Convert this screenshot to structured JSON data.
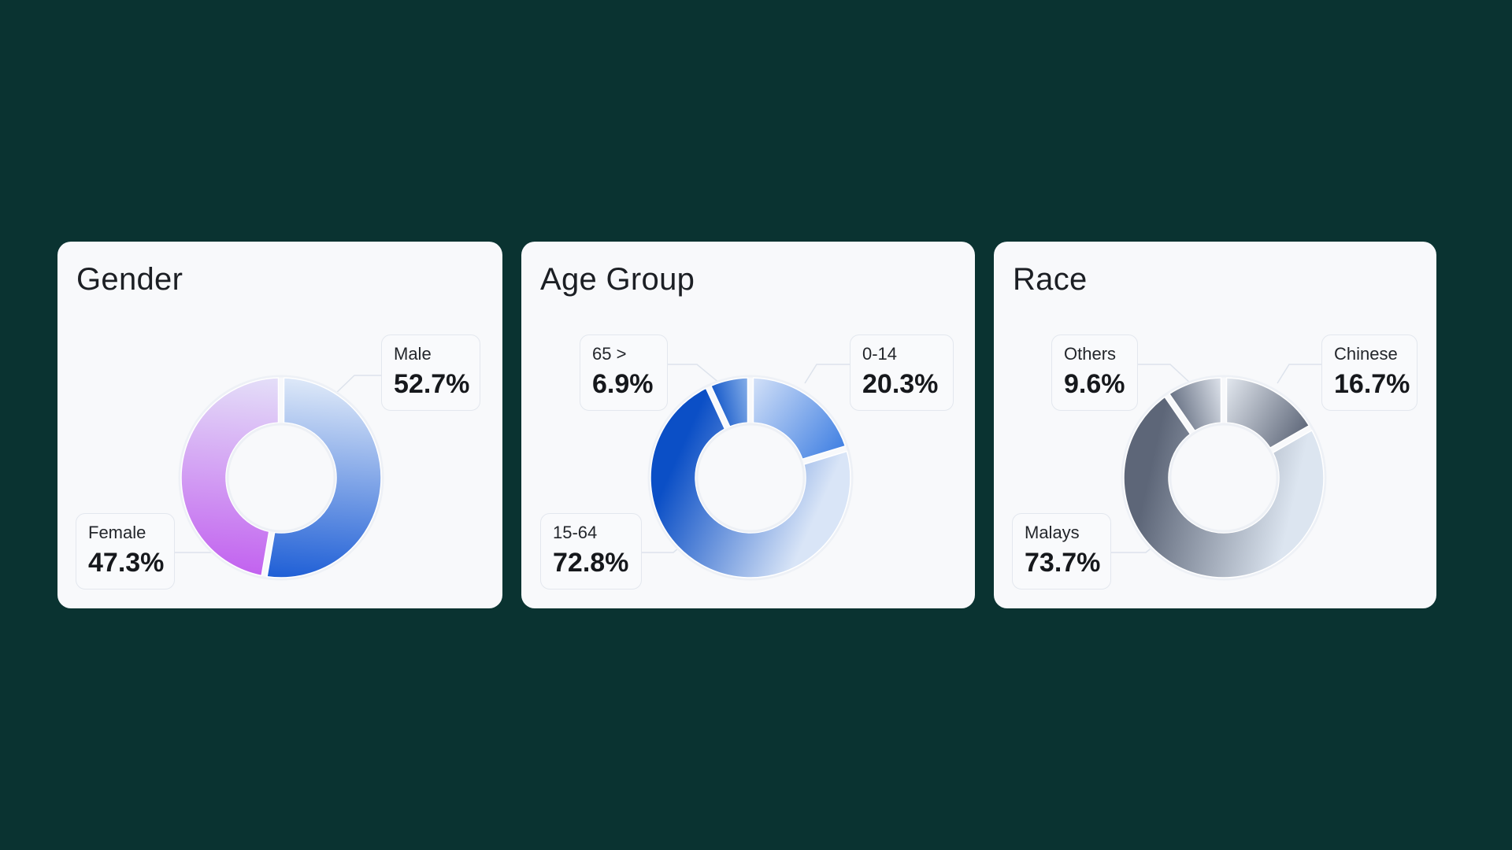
{
  "palette": {
    "background": "#0a3331",
    "card": "#f8f9fb",
    "leader": "#dde3ec"
  },
  "chart_data": [
    {
      "type": "pie",
      "title": "Gender",
      "start_angle_deg": 0,
      "slices": [
        {
          "label": "Male",
          "value": 52.7,
          "display": "52.7%",
          "gradient": [
            "#dde8f8",
            "#1f5fd6"
          ],
          "label_side": "right"
        },
        {
          "label": "Female",
          "value": 47.3,
          "display": "47.3%",
          "gradient": [
            "#c262ef",
            "#e4dff8"
          ],
          "label_side": "left"
        }
      ]
    },
    {
      "type": "pie",
      "title": "Age Group",
      "start_angle_deg": 0,
      "slices": [
        {
          "label": "0-14",
          "value": 20.3,
          "display": "20.3%",
          "gradient": [
            "#d5e2f8",
            "#3f7fe2"
          ],
          "label_side": "right"
        },
        {
          "label": "15-64",
          "value": 72.8,
          "display": "72.8%",
          "gradient": [
            "#d9e5f7",
            "#0b4fc6"
          ],
          "label_side": "left"
        },
        {
          "label": "65 >",
          "value": 6.9,
          "display": "6.9%",
          "gradient": [
            "#0f54c8",
            "#8db4ea"
          ],
          "label_side": "left"
        }
      ]
    },
    {
      "type": "pie",
      "title": "Race",
      "start_angle_deg": 0,
      "slices": [
        {
          "label": "Chinese",
          "value": 16.7,
          "display": "16.7%",
          "gradient": [
            "#e6ebf2",
            "#5d6678"
          ],
          "label_side": "right"
        },
        {
          "label": "Malays",
          "value": 73.7,
          "display": "73.7%",
          "gradient": [
            "#dce5f0",
            "#5d6678"
          ],
          "label_side": "left"
        },
        {
          "label": "Others",
          "value": 9.6,
          "display": "9.6%",
          "gradient": [
            "#636d80",
            "#e3e8f0"
          ],
          "label_side": "left"
        }
      ]
    }
  ]
}
